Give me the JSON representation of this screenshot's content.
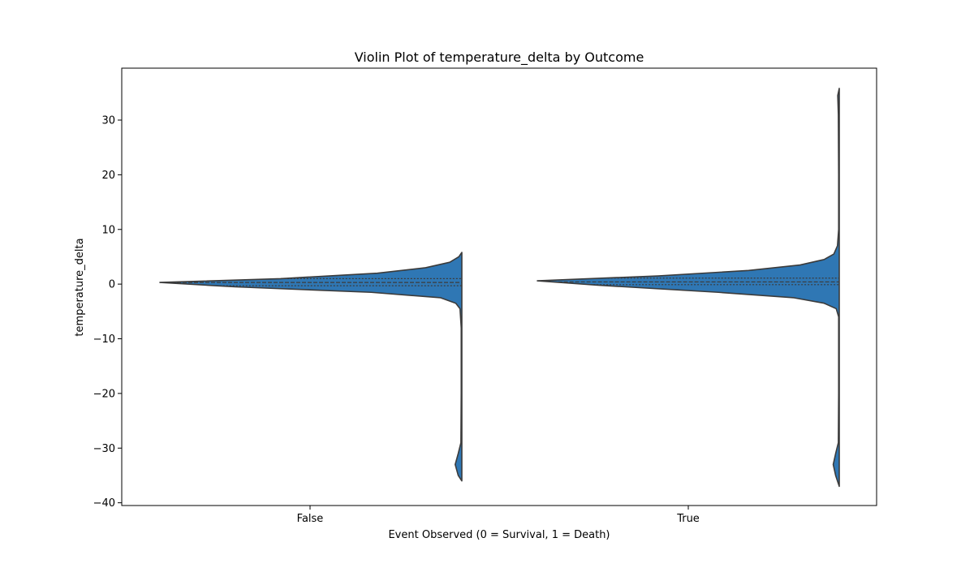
{
  "chart_data": {
    "type": "violin",
    "title": "Violin Plot of temperature_delta by Outcome",
    "xlabel": "Event Observed (0 = Survival, 1 = Death)",
    "ylabel": "temperature_delta",
    "categories": [
      "False",
      "True"
    ],
    "ylim": [
      -40.5,
      39.5
    ],
    "yticks": [
      -40,
      -30,
      -20,
      -10,
      0,
      10,
      20,
      30
    ],
    "ytick_labels": [
      "−40",
      "−30",
      "−20",
      "−10",
      "0",
      "10",
      "20",
      "30"
    ],
    "split": "half-violin (left side)",
    "inner": "quartile",
    "violins": [
      {
        "category": "False",
        "min": -36,
        "max": 5.8,
        "quartiles": [
          -0.3,
          0.3,
          1.0
        ],
        "density_profile": [
          [
            5.8,
            0.0
          ],
          [
            5.0,
            0.01
          ],
          [
            4.0,
            0.04
          ],
          [
            3.0,
            0.12
          ],
          [
            2.0,
            0.28
          ],
          [
            1.0,
            0.6
          ],
          [
            0.3,
            1.0
          ],
          [
            -0.5,
            0.75
          ],
          [
            -1.5,
            0.3
          ],
          [
            -2.5,
            0.07
          ],
          [
            -3.5,
            0.02
          ],
          [
            -4.5,
            0.006
          ],
          [
            -8,
            0.002
          ],
          [
            -20,
            0.002
          ],
          [
            -29,
            0.003
          ],
          [
            -31,
            0.012
          ],
          [
            -33,
            0.022
          ],
          [
            -35,
            0.012
          ],
          [
            -36,
            0.0
          ]
        ]
      },
      {
        "category": "True",
        "min": -37,
        "max": 35.8,
        "quartiles": [
          -0.1,
          0.4,
          1.1
        ],
        "density_profile": [
          [
            35.8,
            0.0
          ],
          [
            34.5,
            0.005
          ],
          [
            31,
            0.003
          ],
          [
            20,
            0.002
          ],
          [
            10,
            0.002
          ],
          [
            7,
            0.006
          ],
          [
            5.5,
            0.018
          ],
          [
            4.5,
            0.05
          ],
          [
            3.5,
            0.13
          ],
          [
            2.5,
            0.3
          ],
          [
            1.5,
            0.6
          ],
          [
            0.6,
            1.0
          ],
          [
            -0.2,
            0.8
          ],
          [
            -1.5,
            0.4
          ],
          [
            -2.5,
            0.15
          ],
          [
            -3.5,
            0.05
          ],
          [
            -4.5,
            0.01
          ],
          [
            -6,
            0.002
          ],
          [
            -20,
            0.002
          ],
          [
            -29,
            0.003
          ],
          [
            -31,
            0.012
          ],
          [
            -33,
            0.02
          ],
          [
            -35,
            0.012
          ],
          [
            -37,
            0.0
          ]
        ]
      }
    ],
    "colors": {
      "fill": "#2f77b4",
      "edge": "#3b3b3b"
    },
    "grid": false,
    "legend": "none"
  }
}
